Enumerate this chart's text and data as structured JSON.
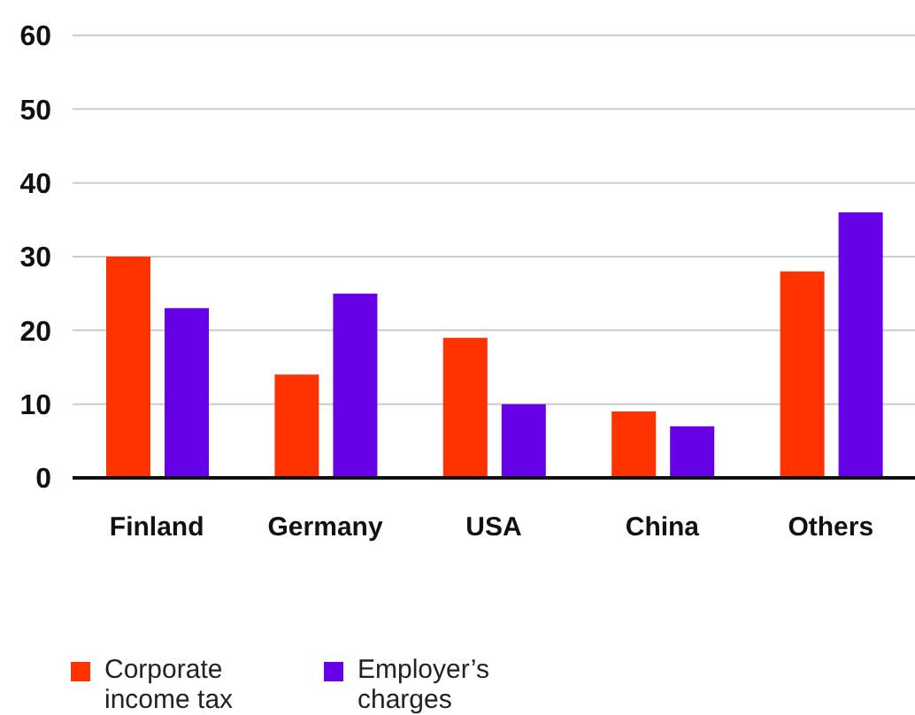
{
  "chart_data": {
    "type": "bar",
    "categories": [
      "Finland",
      "Germany",
      "USA",
      "China",
      "Others"
    ],
    "series": [
      {
        "name": "Corporate income tax",
        "color": "#ff3300",
        "values": [
          30,
          14,
          19,
          9,
          28
        ]
      },
      {
        "name": "Employer’s charges",
        "color": "#6600e6",
        "values": [
          23,
          25,
          10,
          7,
          36
        ]
      }
    ],
    "ylim": [
      0,
      60
    ],
    "yticks": [
      0,
      10,
      20,
      30,
      40,
      50,
      60
    ],
    "grid": "y",
    "legend": "bottom left"
  }
}
